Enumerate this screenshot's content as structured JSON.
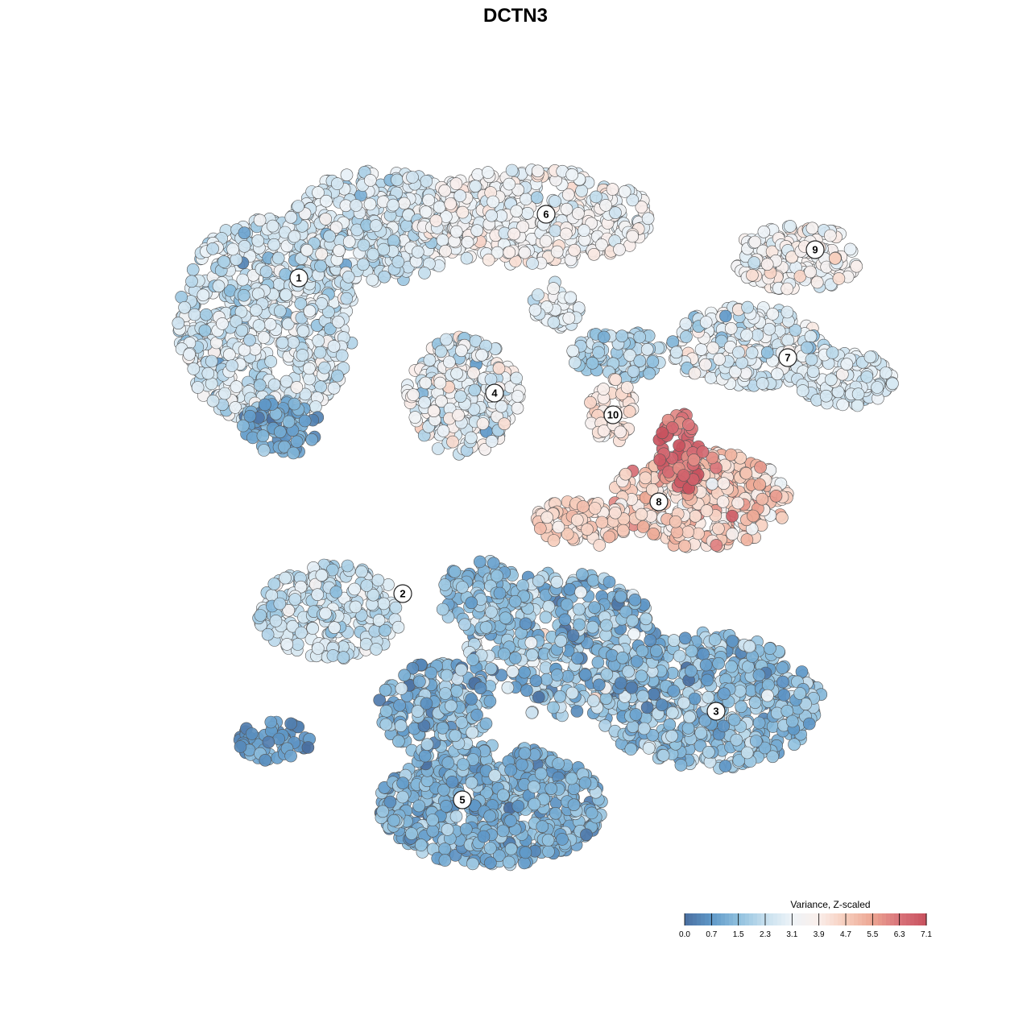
{
  "chart_data": {
    "type": "scatter",
    "title": "DCTN3",
    "xlabel": "",
    "ylabel": "",
    "grid": false,
    "legend": {
      "title": "Variance, Z-scaled",
      "placement": "bottom-right",
      "ticks": [
        "0.0",
        "0.7",
        "1.5",
        "2.3",
        "3.1",
        "3.9",
        "4.7",
        "5.5",
        "6.3",
        "7.1"
      ],
      "range": [
        0.0,
        7.1
      ],
      "colors": [
        "#4a6fa0",
        "#5f98c8",
        "#8fc0de",
        "#c6dfee",
        "#eef4f8",
        "#faeeea",
        "#f6cdbc",
        "#eca592",
        "#d9737a",
        "#c8525e"
      ]
    },
    "clusters": [
      {
        "label": "1",
        "value": 2.6
      },
      {
        "label": "2",
        "value": 2.4
      },
      {
        "label": "3",
        "value": 1.6
      },
      {
        "label": "4",
        "value": 3.0
      },
      {
        "label": "5",
        "value": 1.3
      },
      {
        "label": "6",
        "value": 3.4
      },
      {
        "label": "7",
        "value": 2.8
      },
      {
        "label": "8",
        "value": 4.5
      },
      {
        "label": "9",
        "value": 3.5
      },
      {
        "label": "10",
        "value": 4.1
      }
    ]
  }
}
